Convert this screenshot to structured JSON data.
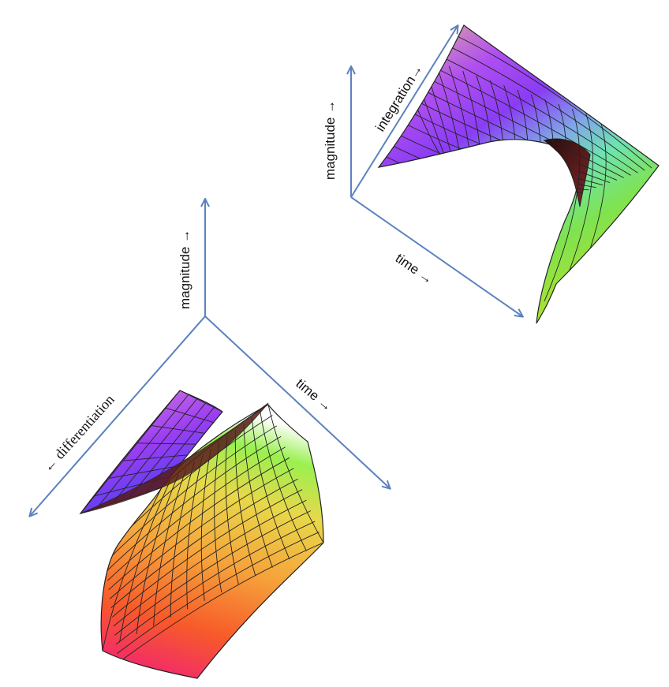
{
  "colors": {
    "axis": "#5b82bf",
    "mesh": "#222222",
    "background": "#ffffff"
  },
  "upper_plot": {
    "magnitude_label": "magnitude →",
    "integration_label": "integration→",
    "time_label": "time →"
  },
  "lower_plot": {
    "magnitude_label": "magnitude →",
    "differentiation_label": "← differentiation",
    "time_label": "time →"
  }
}
